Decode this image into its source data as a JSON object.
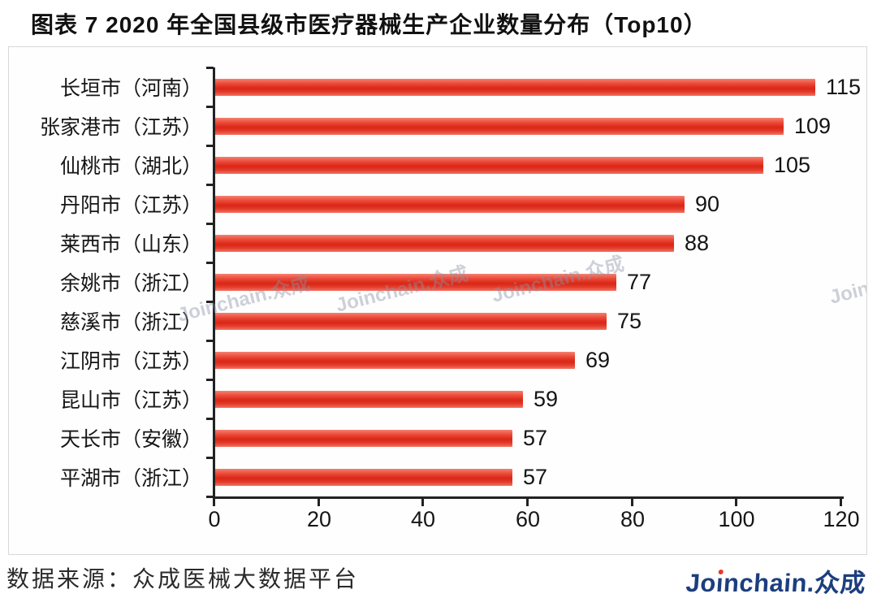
{
  "title": "图表 7   2020 年全国县级市医疗器械生产企业数量分布（Top10）",
  "chart_data": {
    "type": "bar",
    "orientation": "horizontal",
    "title": "2020 年全国县级市医疗器械生产企业数量分布（Top10）",
    "categories": [
      "长垣市（河南）",
      "张家港市（江苏）",
      "仙桃市（湖北）",
      "丹阳市（江苏）",
      "莱西市（山东）",
      "余姚市（浙江）",
      "慈溪市（浙江）",
      "江阴市（江苏）",
      "昆山市（江苏）",
      "天长市（安徽）",
      "平湖市（浙江）"
    ],
    "values": [
      115,
      109,
      105,
      90,
      88,
      77,
      75,
      69,
      59,
      57,
      57
    ],
    "xlabel": "",
    "ylabel": "",
    "xlim": [
      0,
      120
    ],
    "x_ticks": [
      0,
      20,
      40,
      60,
      80,
      100,
      120
    ],
    "grid": false,
    "legend": false,
    "bar_color": "#e63a2a",
    "value_labels_shown": true
  },
  "watermark": {
    "text": "Joinchain.众成"
  },
  "footer": {
    "source_label": "数据来源：众成医械大数据平台",
    "logo_parts": {
      "pre": "Jo",
      "i_body": "ı",
      "mid": "nchain",
      "dot": ".",
      "cn": "众成"
    },
    "logo_color": "#1c3e7e",
    "logo_accent": "#e8392b"
  }
}
